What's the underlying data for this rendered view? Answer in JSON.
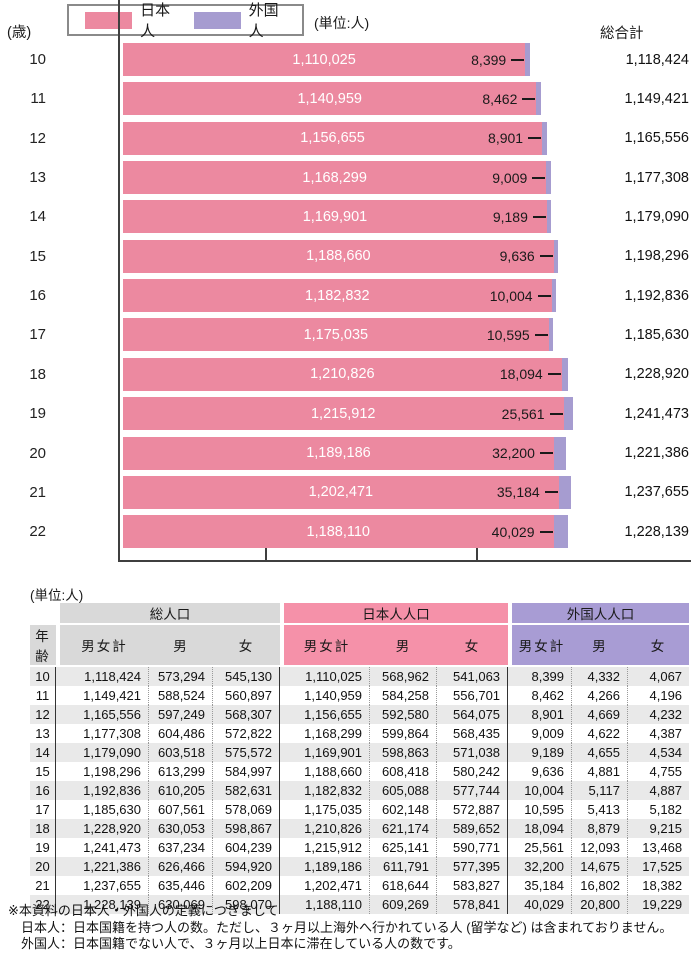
{
  "chart": {
    "y_axis_unit": "(歳)",
    "legend": {
      "japanese": "日本人",
      "foreign": "外国人",
      "unit": "(単位:人)"
    },
    "grand_total_header": "総合計"
  },
  "chart_data": {
    "type": "bar",
    "orientation": "horizontal",
    "stacked": true,
    "unit": "人",
    "category_axis_label": "(歳)",
    "categories": [
      10,
      11,
      12,
      13,
      14,
      15,
      16,
      17,
      18,
      19,
      20,
      21,
      22
    ],
    "series": [
      {
        "name": "日本人",
        "color": "#EC89A0",
        "values": [
          1110025,
          1140959,
          1156655,
          1168299,
          1169901,
          1188660,
          1182832,
          1175035,
          1210826,
          1215912,
          1189186,
          1202471,
          1188110
        ]
      },
      {
        "name": "外国人",
        "color": "#A69CD0",
        "values": [
          8399,
          8462,
          8901,
          9009,
          9189,
          9636,
          10004,
          10595,
          18094,
          25561,
          32200,
          35184,
          40029
        ]
      }
    ],
    "totals": [
      1118424,
      1149421,
      1165556,
      1177308,
      1179090,
      1198296,
      1192836,
      1185630,
      1228920,
      1241473,
      1221386,
      1237655,
      1228139
    ],
    "totals_header": "総合計",
    "value_axis": {
      "ticks_labeled": false,
      "tick_count": 2
    },
    "legend_position": "top-left"
  },
  "table": {
    "unit_label": "(単位:人)",
    "age_header": "年齢",
    "col_groups": [
      {
        "label": "総人口",
        "color": "#D9D9D9"
      },
      {
        "label": "日本人人口",
        "color": "#F591A9"
      },
      {
        "label": "外国人人口",
        "color": "#A89CD4"
      }
    ],
    "sub_headers": [
      "男女計",
      "男",
      "女"
    ],
    "rows": [
      {
        "age": 10,
        "total": [
          1118424,
          573294,
          545130
        ],
        "japanese": [
          1110025,
          568962,
          541063
        ],
        "foreign": [
          8399,
          4332,
          4067
        ]
      },
      {
        "age": 11,
        "total": [
          1149421,
          588524,
          560897
        ],
        "japanese": [
          1140959,
          584258,
          556701
        ],
        "foreign": [
          8462,
          4266,
          4196
        ]
      },
      {
        "age": 12,
        "total": [
          1165556,
          597249,
          568307
        ],
        "japanese": [
          1156655,
          592580,
          564075
        ],
        "foreign": [
          8901,
          4669,
          4232
        ]
      },
      {
        "age": 13,
        "total": [
          1177308,
          604486,
          572822
        ],
        "japanese": [
          1168299,
          599864,
          568435
        ],
        "foreign": [
          9009,
          4622,
          4387
        ]
      },
      {
        "age": 14,
        "total": [
          1179090,
          603518,
          575572
        ],
        "japanese": [
          1169901,
          598863,
          571038
        ],
        "foreign": [
          9189,
          4655,
          4534
        ]
      },
      {
        "age": 15,
        "total": [
          1198296,
          613299,
          584997
        ],
        "japanese": [
          1188660,
          608418,
          580242
        ],
        "foreign": [
          9636,
          4881,
          4755
        ]
      },
      {
        "age": 16,
        "total": [
          1192836,
          610205,
          582631
        ],
        "japanese": [
          1182832,
          605088,
          577744
        ],
        "foreign": [
          10004,
          5117,
          4887
        ]
      },
      {
        "age": 17,
        "total": [
          1185630,
          607561,
          578069
        ],
        "japanese": [
          1175035,
          602148,
          572887
        ],
        "foreign": [
          10595,
          5413,
          5182
        ]
      },
      {
        "age": 18,
        "total": [
          1228920,
          630053,
          598867
        ],
        "japanese": [
          1210826,
          621174,
          589652
        ],
        "foreign": [
          18094,
          8879,
          9215
        ]
      },
      {
        "age": 19,
        "total": [
          1241473,
          637234,
          604239
        ],
        "japanese": [
          1215912,
          625141,
          590771
        ],
        "foreign": [
          25561,
          12093,
          13468
        ]
      },
      {
        "age": 20,
        "total": [
          1221386,
          626466,
          594920
        ],
        "japanese": [
          1189186,
          611791,
          577395
        ],
        "foreign": [
          32200,
          14675,
          17525
        ]
      },
      {
        "age": 21,
        "total": [
          1237655,
          635446,
          602209
        ],
        "japanese": [
          1202471,
          618644,
          583827
        ],
        "foreign": [
          35184,
          16802,
          18382
        ]
      },
      {
        "age": 22,
        "total": [
          1228139,
          630069,
          598070
        ],
        "japanese": [
          1188110,
          609269,
          578841
        ],
        "foreign": [
          40029,
          20800,
          19229
        ]
      }
    ]
  },
  "notes": {
    "line1": "※本資料の日本人・外国人の定義につきまして",
    "line2": "日本人：日本国籍を持つ人の数。ただし、３ヶ月以上海外へ行かれている人 (留学など) は含まれておりません。",
    "line3": "外国人：日本国籍でない人で、３ヶ月以上日本に滞在している人の数です。"
  },
  "colors": {
    "japanese_bar": "#EC89A0",
    "foreign_bar": "#A69CD0",
    "header_total": "#D9D9D9",
    "header_japanese": "#F591A9",
    "header_foreign": "#A89CD4",
    "row_stripe": "#E9E9E9",
    "axis": "#3f3f3f"
  }
}
